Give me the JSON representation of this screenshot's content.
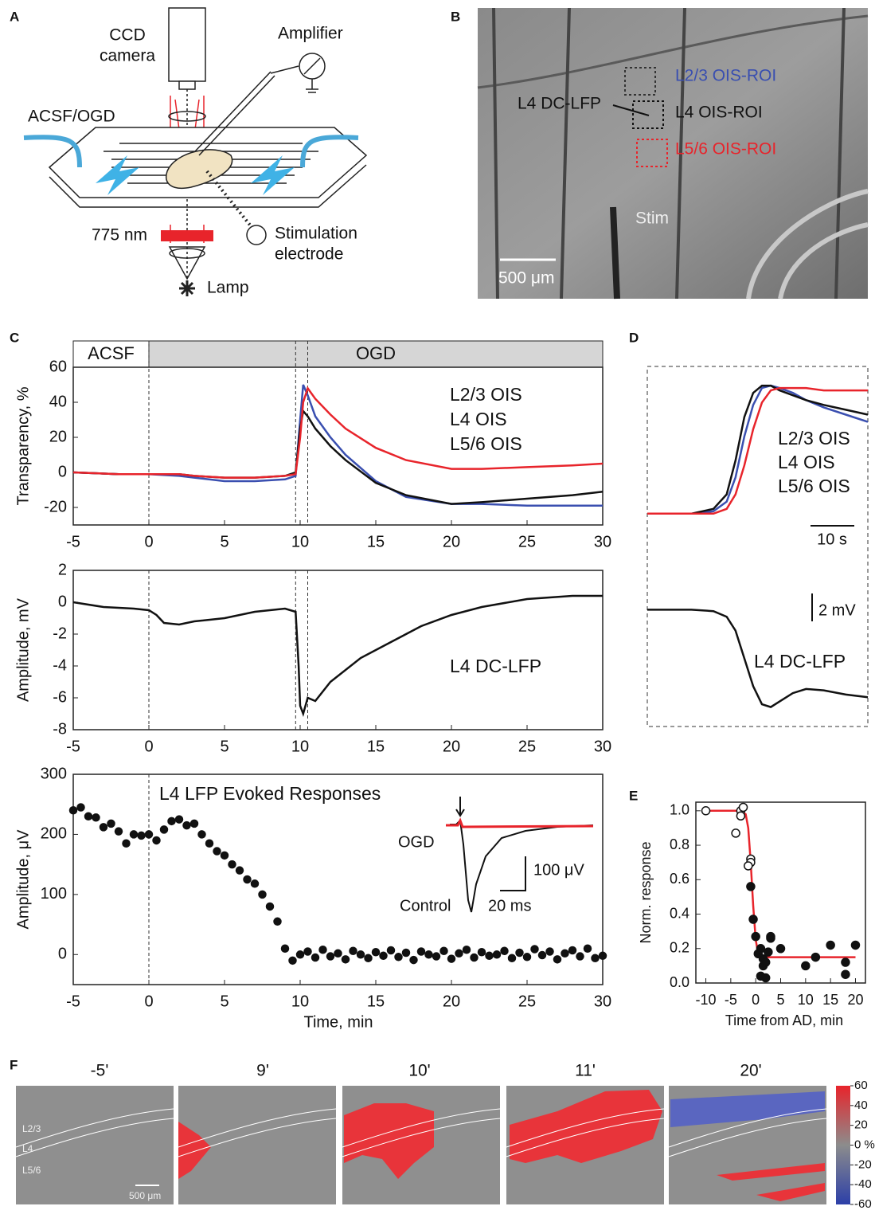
{
  "panel_labels": [
    "A",
    "B",
    "C",
    "D",
    "E",
    "F"
  ],
  "diagram_a": {
    "camera": [
      "CCD",
      "camera"
    ],
    "amplifier": "Amplifier",
    "perfusion": "ACSF/OGD",
    "filter": "775 nm",
    "stimulation": [
      "Stimulation",
      "electrode"
    ],
    "lamp": "Lamp"
  },
  "image_b": {
    "roi_l23": "L2/3 OIS-ROI",
    "lfp": "L4 DC-LFP",
    "roi_l4": "L4 OIS-ROI",
    "roi_l56": "L5/6 OIS-ROI",
    "stim": "Stim",
    "scale": "500 μm"
  },
  "chart_data": [
    {
      "type": "line",
      "ylabel": "Transparency, %",
      "xlim": [
        -5,
        30
      ],
      "xticks": [
        -5,
        0,
        5,
        10,
        15,
        20,
        25,
        30
      ],
      "ylim": [
        -30,
        60
      ],
      "yticks": [
        -20,
        0,
        20,
        40,
        60
      ],
      "phases": [
        {
          "label": "ACSF",
          "from": -5,
          "to": 0,
          "color": "#ffffff"
        },
        {
          "label": "OGD",
          "from": 0,
          "to": 30,
          "color": "#d6d6d6"
        }
      ],
      "vlines": [
        0,
        9.7,
        10.5
      ],
      "x": [
        -5,
        -2,
        0,
        2,
        3,
        5,
        7,
        9,
        9.7,
        10,
        10.2,
        10.5,
        11,
        12,
        13,
        15,
        17,
        20,
        22,
        25,
        28,
        30
      ],
      "series": [
        {
          "name": "L2/3 OIS",
          "color": "#3a4fb0",
          "values": [
            0,
            -1,
            -1,
            -2,
            -3,
            -5,
            -5,
            -4,
            -2,
            30,
            50,
            44,
            32,
            20,
            10,
            -5,
            -14,
            -18,
            -18,
            -19,
            -19,
            -19
          ]
        },
        {
          "name": "L4 OIS",
          "color": "#111111",
          "values": [
            0,
            -1,
            -1,
            -1,
            -2,
            -3,
            -3,
            -2,
            0,
            25,
            35,
            32,
            25,
            15,
            7,
            -6,
            -13,
            -18,
            -17,
            -15,
            -13,
            -11
          ]
        },
        {
          "name": "L5/6 OIS",
          "color": "#e8242b",
          "values": [
            0,
            -1,
            -1,
            -1,
            -2,
            -3,
            -3,
            -2,
            -1,
            20,
            40,
            48,
            42,
            33,
            25,
            14,
            7,
            2,
            2,
            3,
            4,
            5
          ]
        }
      ]
    },
    {
      "type": "line",
      "ylabel": "Amplitude, mV",
      "xlim": [
        -5,
        30
      ],
      "xticks": [
        -5,
        0,
        5,
        10,
        15,
        20,
        25,
        30
      ],
      "ylim": [
        -8,
        2
      ],
      "yticks": [
        -8,
        -6,
        -4,
        -2,
        0,
        2
      ],
      "vlines": [
        0,
        9.7,
        10.5
      ],
      "x": [
        -5,
        -3,
        -1,
        0,
        0.5,
        1,
        2,
        3,
        5,
        7,
        9,
        9.7,
        9.9,
        10,
        10.2,
        10.5,
        11,
        12,
        14,
        16,
        18,
        20,
        22,
        25,
        28,
        30
      ],
      "series": [
        {
          "name": "L4 DC-LFP",
          "color": "#111111",
          "values": [
            0,
            -0.3,
            -0.4,
            -0.5,
            -0.8,
            -1.3,
            -1.4,
            -1.2,
            -1,
            -0.6,
            -0.4,
            -0.6,
            -4,
            -6.5,
            -7,
            -6,
            -6.2,
            -5,
            -3.5,
            -2.5,
            -1.5,
            -0.8,
            -0.3,
            0.2,
            0.4,
            0.4
          ]
        }
      ]
    },
    {
      "type": "scatter",
      "xlabel": "Time, min",
      "ylabel": "Amplitude, μV",
      "xlim": [
        -5,
        30
      ],
      "xticks": [
        -5,
        0,
        5,
        10,
        15,
        20,
        25,
        30
      ],
      "ylim": [
        -50,
        300
      ],
      "yticks": [
        0,
        100,
        200,
        300
      ],
      "vlines": [
        0
      ],
      "annotations": [
        {
          "text": "L4 LFP Evoked Responses"
        },
        {
          "text": "OGD",
          "color": "#e8242b"
        },
        {
          "text": "Control"
        },
        {
          "text": "100 μV"
        },
        {
          "text": "20 ms"
        }
      ],
      "x": [
        -5,
        -4.5,
        -4,
        -3.5,
        -3,
        -2.5,
        -2,
        -1.5,
        -1,
        -0.5,
        0,
        0.5,
        1,
        1.5,
        2,
        2.5,
        3,
        3.5,
        4,
        4.5,
        5,
        5.5,
        6,
        6.5,
        7,
        7.5,
        8,
        8.5,
        9,
        9.5,
        10,
        10.5,
        11,
        11.5,
        12,
        12.5,
        13,
        13.5,
        14,
        14.5,
        15,
        15.5,
        16,
        16.5,
        17,
        17.5,
        18,
        18.5,
        19,
        19.5,
        20,
        20.5,
        21,
        21.5,
        22,
        22.5,
        23,
        23.5,
        24,
        24.5,
        25,
        25.5,
        26,
        26.5,
        27,
        27.5,
        28,
        28.5,
        29,
        29.5,
        30
      ],
      "series": [
        {
          "color": "#111111",
          "values": [
            240,
            245,
            230,
            228,
            212,
            218,
            205,
            185,
            200,
            198,
            200,
            190,
            208,
            222,
            225,
            215,
            218,
            200,
            185,
            172,
            165,
            150,
            140,
            125,
            118,
            100,
            80,
            55,
            10,
            -10,
            0,
            5,
            -5,
            8,
            -3,
            2,
            -8,
            6,
            0,
            -6,
            4,
            -2,
            7,
            -4,
            3,
            -9,
            5,
            0,
            -3,
            6,
            -7,
            2,
            8,
            -5,
            4,
            -2,
            0,
            6,
            -6,
            3,
            -4,
            9,
            -1,
            5,
            -8,
            2,
            7,
            -3,
            10,
            -6,
            -2
          ]
        }
      ]
    },
    {
      "type": "line",
      "xlim": [
        0,
        50
      ],
      "ylim": [
        -5,
        55
      ],
      "annotations": [
        {
          "text": "10 s"
        }
      ],
      "x": [
        0,
        10,
        15,
        18,
        20,
        22,
        24,
        26,
        28,
        30,
        33,
        36,
        40,
        45,
        50
      ],
      "series": [
        {
          "name": "L2/3 OIS",
          "color": "#3a4fb0",
          "values": [
            0,
            0,
            1,
            5,
            15,
            32,
            45,
            52,
            53,
            52,
            50,
            47,
            44,
            41,
            38
          ]
        },
        {
          "name": "L4 OIS",
          "color": "#111111",
          "values": [
            0,
            0,
            2,
            8,
            22,
            40,
            50,
            53,
            53,
            51,
            49,
            47,
            45,
            43,
            41
          ]
        },
        {
          "name": "L5/6 OIS",
          "color": "#e8242b",
          "values": [
            0,
            0,
            0,
            2,
            8,
            20,
            35,
            46,
            51,
            52,
            52,
            52,
            51,
            51,
            51
          ]
        }
      ]
    },
    {
      "type": "line",
      "xlim": [
        0,
        50
      ],
      "ylim": [
        -8,
        1
      ],
      "annotations": [
        {
          "text": "2 mV"
        }
      ],
      "x": [
        0,
        10,
        15,
        18,
        20,
        22,
        24,
        26,
        28,
        30,
        33,
        36,
        40,
        45,
        50
      ],
      "series": [
        {
          "name": "L4 DC-LFP",
          "color": "#111111",
          "values": [
            0,
            0,
            -0.1,
            -0.5,
            -1.5,
            -3.5,
            -5.5,
            -6.8,
            -7,
            -6.6,
            -6,
            -5.7,
            -5.8,
            -6.1,
            -6.3
          ]
        }
      ]
    },
    {
      "type": "scatter",
      "xlabel": "Time from AD, min",
      "ylabel": "Norm. response",
      "xlim": [
        -12,
        22
      ],
      "xticks": [
        -10,
        -5,
        0,
        5,
        10,
        15,
        20
      ],
      "ylim": [
        0,
        1.05
      ],
      "yticks": [
        {
          "value": 0,
          "label": "0.0"
        },
        0.2,
        0.4,
        0.6,
        0.8,
        {
          "value": 1,
          "label": "1.0"
        }
      ],
      "series": [
        {
          "style": "line",
          "color": "#e8242b",
          "x": [
            -10,
            -3,
            -2,
            -1.5,
            -1,
            -0.5,
            0,
            0.5,
            1,
            2,
            20
          ],
          "values": [
            1,
            1,
            0.98,
            0.9,
            0.7,
            0.45,
            0.25,
            0.17,
            0.15,
            0.15,
            0.15
          ]
        },
        {
          "style": "open",
          "color": "#111111",
          "x": [
            -10,
            -3,
            -3,
            -2.5,
            -4,
            -1,
            -1,
            -1.5
          ],
          "values": [
            1,
            1,
            0.97,
            1.02,
            0.87,
            0.72,
            0.7,
            0.68
          ]
        },
        {
          "style": "filled",
          "color": "#111111",
          "x": [
            -1,
            -0.5,
            0,
            0.5,
            1,
            1,
            1.5,
            1.5,
            2,
            2,
            2.5,
            3,
            3,
            5,
            10,
            12,
            15,
            18,
            18,
            20
          ],
          "values": [
            0.56,
            0.37,
            0.27,
            0.17,
            0.04,
            0.2,
            0.14,
            0.1,
            0.12,
            0.03,
            0.18,
            0.26,
            0.27,
            0.2,
            0.1,
            0.15,
            0.22,
            0.12,
            0.05,
            0.22
          ]
        }
      ]
    }
  ],
  "image_f": {
    "times": [
      "-5'",
      "9'",
      "10'",
      "11'",
      "20'"
    ],
    "layers": [
      "L2/3",
      "L4",
      "L5/6"
    ],
    "scale": "500 μm",
    "colorbar": {
      "range": [
        -60,
        60
      ],
      "ticks": [
        60,
        40,
        20,
        {
          "value": 0,
          "label": "0 %"
        },
        -20,
        -40,
        -60
      ]
    }
  }
}
